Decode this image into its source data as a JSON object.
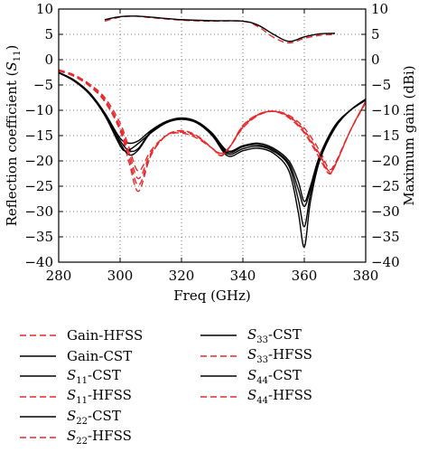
{
  "chart_data": {
    "type": "line",
    "xlabel": "Freq (GHz)",
    "ylabel_left": "Reflection coefficient (S11)",
    "ylabel_right": "Maximum gain (dBi)",
    "xlim": [
      280,
      380
    ],
    "ylim_left": [
      -40,
      10
    ],
    "ylim_right": [
      -40,
      10
    ],
    "xticks": [
      280,
      300,
      320,
      340,
      360,
      380
    ],
    "yticks": [
      10,
      5,
      0,
      -5,
      -10,
      -15,
      -20,
      -25,
      -30,
      -35,
      -40
    ],
    "grid": "dotted",
    "legend_position": "below",
    "series": [
      {
        "name": "Gain-HFSS",
        "color": "#e8282b",
        "dash": true,
        "x": [
          295,
          300,
          305,
          310,
          320,
          330,
          340,
          345,
          350,
          355,
          360,
          365,
          370
        ],
        "y": [
          7.6,
          8.4,
          8.6,
          8.3,
          7.8,
          7.6,
          7.6,
          6.5,
          4.4,
          3.3,
          4.2,
          4.8,
          5.0
        ]
      },
      {
        "name": "Gain-CST",
        "color": "#000000",
        "dash": false,
        "x": [
          295,
          300,
          305,
          310,
          320,
          330,
          340,
          345,
          350,
          355,
          360,
          365,
          370
        ],
        "y": [
          7.9,
          8.5,
          8.6,
          8.4,
          7.9,
          7.7,
          7.6,
          6.8,
          5.0,
          3.6,
          4.5,
          5.1,
          5.2
        ]
      },
      {
        "name": "S11-CST",
        "color": "#000000",
        "dash": false,
        "x": [
          280,
          285,
          290,
          295,
          300,
          303,
          306,
          310,
          315,
          320,
          325,
          330,
          335,
          340,
          345,
          350,
          355,
          358,
          360,
          362,
          365,
          370,
          375,
          380
        ],
        "y": [
          -2.5,
          -4,
          -6.5,
          -10.5,
          -15.5,
          -16.5,
          -16.0,
          -14.0,
          -12.2,
          -11.5,
          -12.2,
          -14.5,
          -18.0,
          -17.0,
          -16.5,
          -17.5,
          -20.0,
          -24.0,
          -28.0,
          -25.0,
          -19.0,
          -13.0,
          -10.0,
          -8.0
        ]
      },
      {
        "name": "S11-HFSS",
        "color": "#e8282b",
        "dash": true,
        "x": [
          280,
          285,
          290,
          295,
          300,
          303,
          306,
          310,
          315,
          320,
          325,
          330,
          333,
          336,
          340,
          345,
          350,
          355,
          360,
          365,
          368,
          370,
          375,
          380
        ],
        "y": [
          -2.0,
          -3.0,
          -4.8,
          -7.5,
          -12.5,
          -17.5,
          -22.0,
          -18.0,
          -15.0,
          -14.5,
          -15.5,
          -17.5,
          -18.5,
          -17.0,
          -13.5,
          -11.0,
          -10.2,
          -11.0,
          -13.5,
          -18.0,
          -21.5,
          -20.5,
          -14.0,
          -8.5
        ]
      },
      {
        "name": "S22-CST",
        "color": "#000000",
        "dash": false,
        "x": [
          280,
          285,
          290,
          295,
          300,
          302,
          305,
          310,
          315,
          320,
          325,
          330,
          335,
          340,
          345,
          350,
          355,
          358,
          360,
          362,
          365,
          370,
          375,
          380
        ],
        "y": [
          -2.6,
          -4.2,
          -6.8,
          -11.0,
          -17.0,
          -18.0,
          -17.0,
          -14.5,
          -12.5,
          -11.8,
          -12.5,
          -15.0,
          -19.0,
          -18.0,
          -17.5,
          -18.5,
          -22.0,
          -30.0,
          -37.0,
          -28.0,
          -20.0,
          -13.5,
          -10.0,
          -7.8
        ]
      },
      {
        "name": "S22-HFSS",
        "color": "#e8282b",
        "dash": true,
        "x": [
          280,
          285,
          290,
          295,
          300,
          303,
          306,
          310,
          315,
          320,
          325,
          330,
          333,
          336,
          340,
          345,
          350,
          355,
          360,
          365,
          368,
          370,
          375,
          380
        ],
        "y": [
          -2.2,
          -3.3,
          -5.2,
          -8.3,
          -14.0,
          -20.5,
          -26.0,
          -19.0,
          -15.0,
          -14.0,
          -15.0,
          -17.5,
          -19.0,
          -17.0,
          -13.0,
          -10.8,
          -10.2,
          -11.5,
          -14.5,
          -19.5,
          -22.5,
          -21.0,
          -14.0,
          -8.2
        ]
      },
      {
        "name": "S33-CST",
        "color": "#000000",
        "dash": false,
        "x": [
          280,
          285,
          290,
          295,
          300,
          303,
          306,
          310,
          315,
          320,
          325,
          330,
          335,
          340,
          345,
          350,
          355,
          358,
          360,
          362,
          365,
          370,
          375,
          380
        ],
        "y": [
          -2.5,
          -4.1,
          -6.6,
          -10.8,
          -16.0,
          -18.0,
          -17.5,
          -14.2,
          -12.3,
          -11.6,
          -12.3,
          -14.8,
          -18.3,
          -17.2,
          -16.8,
          -17.8,
          -20.5,
          -25.5,
          -29.0,
          -25.5,
          -19.3,
          -13.2,
          -10.0,
          -7.9
        ]
      },
      {
        "name": "S33-HFSS",
        "color": "#e8282b",
        "dash": true,
        "x": [
          280,
          285,
          290,
          295,
          300,
          303,
          306,
          310,
          315,
          320,
          325,
          330,
          333,
          336,
          340,
          345,
          350,
          355,
          360,
          365,
          368,
          370,
          375,
          380
        ],
        "y": [
          -2.1,
          -3.1,
          -5.0,
          -7.9,
          -13.2,
          -18.5,
          -23.5,
          -18.5,
          -15.0,
          -14.3,
          -15.2,
          -17.5,
          -18.7,
          -17.0,
          -13.3,
          -10.9,
          -10.2,
          -11.2,
          -14.0,
          -18.7,
          -22.0,
          -20.8,
          -14.0,
          -8.4
        ]
      },
      {
        "name": "S44-CST",
        "color": "#000000",
        "dash": false,
        "x": [
          280,
          285,
          290,
          295,
          300,
          303,
          306,
          310,
          315,
          320,
          325,
          330,
          335,
          340,
          345,
          350,
          355,
          358,
          360,
          362,
          365,
          370,
          375,
          380
        ],
        "y": [
          -2.6,
          -4.2,
          -6.7,
          -10.9,
          -16.5,
          -18.8,
          -17.8,
          -14.4,
          -12.4,
          -11.7,
          -12.4,
          -14.9,
          -18.6,
          -17.6,
          -17.1,
          -18.1,
          -21.0,
          -27.5,
          -33.0,
          -26.5,
          -19.6,
          -13.4,
          -10.0,
          -7.8
        ]
      },
      {
        "name": "S44-HFSS",
        "color": "#e8282b",
        "dash": true,
        "x": [
          280,
          285,
          290,
          295,
          300,
          303,
          306,
          310,
          315,
          320,
          325,
          330,
          333,
          336,
          340,
          345,
          350,
          355,
          360,
          365,
          368,
          370,
          375,
          380
        ],
        "y": [
          -2.2,
          -3.2,
          -5.1,
          -8.1,
          -13.6,
          -19.5,
          -24.8,
          -18.8,
          -15.0,
          -14.1,
          -15.1,
          -17.5,
          -18.9,
          -17.0,
          -13.1,
          -10.8,
          -10.2,
          -11.3,
          -14.3,
          -19.1,
          -22.3,
          -20.9,
          -14.0,
          -8.3
        ]
      }
    ],
    "legend": [
      {
        "series": 0,
        "prefix": "Gain-HFSS",
        "sym": "",
        "sub": "",
        "suffix": ""
      },
      {
        "series": 1,
        "prefix": "Gain-CST",
        "sym": "",
        "sub": "",
        "suffix": ""
      },
      {
        "series": 2,
        "prefix": "",
        "sym": "S",
        "sub": "11",
        "suffix": "-CST"
      },
      {
        "series": 3,
        "prefix": "",
        "sym": "S",
        "sub": "11",
        "suffix": "-HFSS"
      },
      {
        "series": 4,
        "prefix": "",
        "sym": "S",
        "sub": "22",
        "suffix": "-CST"
      },
      {
        "series": 5,
        "prefix": "",
        "sym": "S",
        "sub": "22",
        "suffix": "-HFSS"
      },
      {
        "series": 6,
        "prefix": "",
        "sym": "S",
        "sub": "33",
        "suffix": "-CST"
      },
      {
        "series": 7,
        "prefix": "",
        "sym": "S",
        "sub": "33",
        "suffix": "-HFSS"
      },
      {
        "series": 8,
        "prefix": "",
        "sym": "S",
        "sub": "44",
        "suffix": "-CST"
      },
      {
        "series": 9,
        "prefix": "",
        "sym": "S",
        "sub": "44",
        "suffix": "-HFSS"
      }
    ]
  }
}
